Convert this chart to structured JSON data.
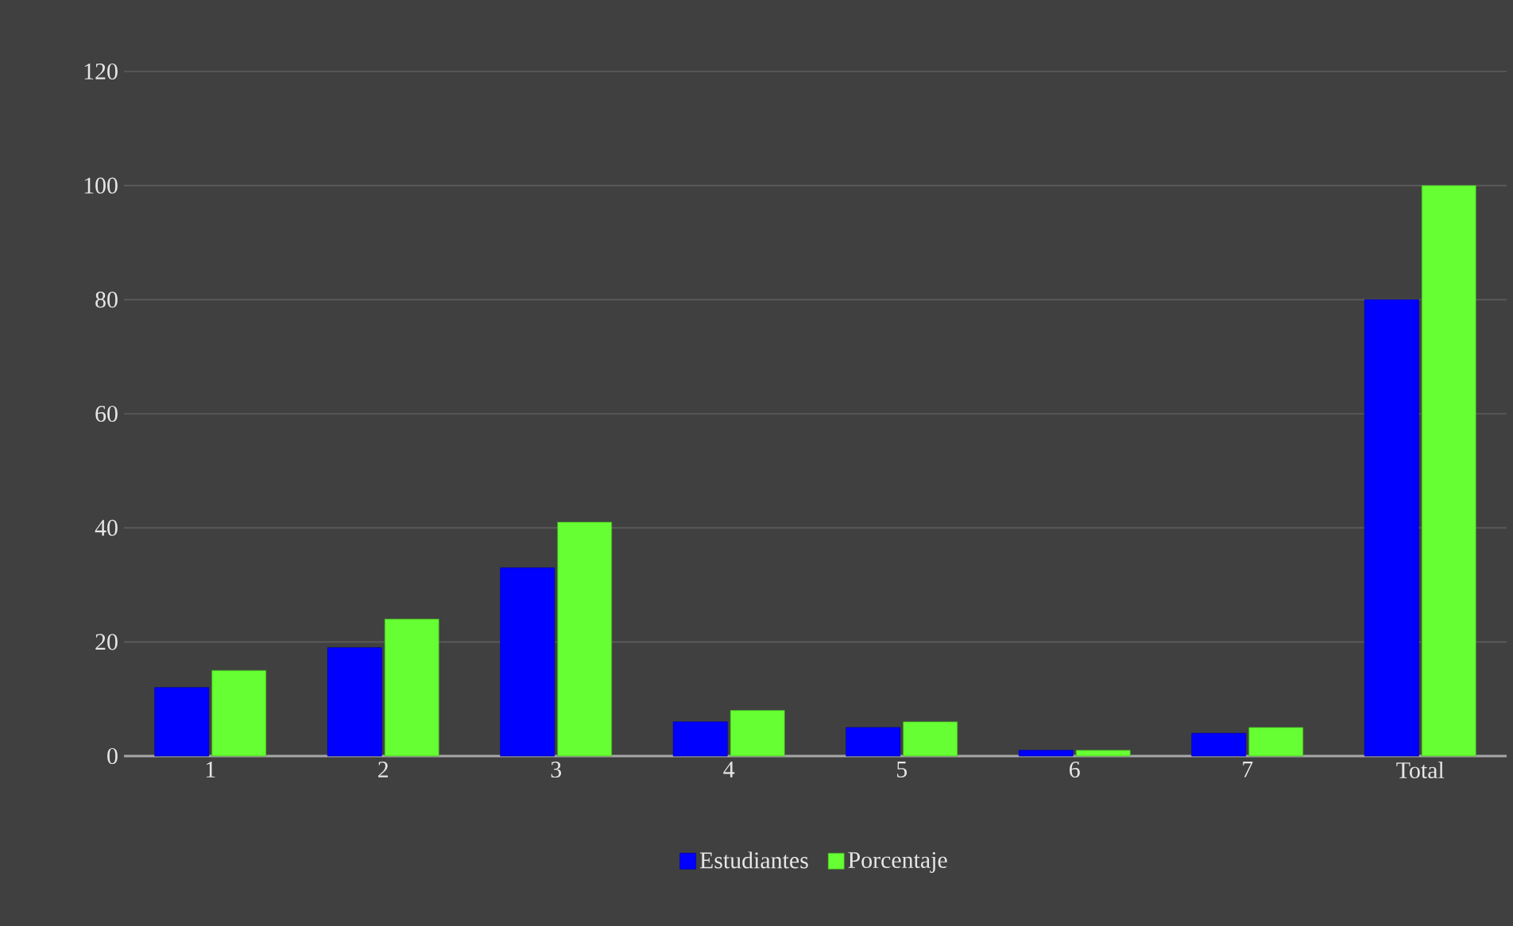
{
  "chart_data": {
    "type": "bar",
    "categories": [
      "1",
      "2",
      "3",
      "4",
      "5",
      "6",
      "7",
      "Total"
    ],
    "series": [
      {
        "name": "Estudiantes",
        "color": "#0000ff",
        "values": [
          12,
          19,
          33,
          6,
          5,
          1,
          4,
          80
        ]
      },
      {
        "name": "Porcentaje",
        "color": "#66ff33",
        "values": [
          15,
          24,
          41,
          8,
          6,
          1,
          5,
          100
        ]
      }
    ],
    "ylim": [
      0,
      120
    ],
    "yticks": [
      0,
      20,
      40,
      60,
      80,
      100,
      120
    ],
    "grid": "y",
    "legend": "bottom"
  }
}
